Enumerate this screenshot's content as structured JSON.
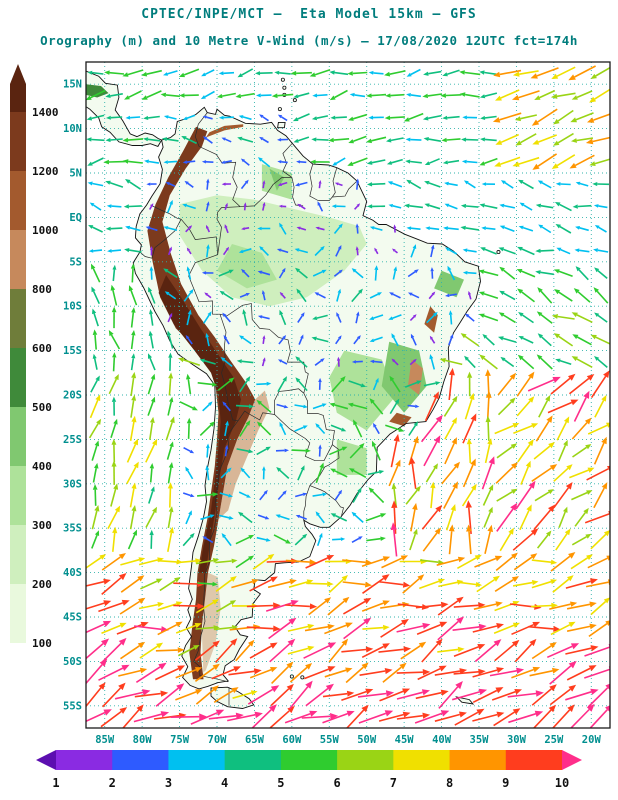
{
  "header": {
    "title_line1": "CPTEC/INPE/MCT —  Eta Model 15km — GFS",
    "title_line2": "Orography (m) and 10 Metre V-Wind (m/s) — 17/08/2020 12UTC fct=174h"
  },
  "map": {
    "lat_labels": [
      "15N",
      "10N",
      "5N",
      "EQ",
      "5S",
      "10S",
      "15S",
      "20S",
      "25S",
      "30S",
      "35S",
      "40S",
      "45S",
      "50S",
      "55S"
    ],
    "lon_labels": [
      "85W",
      "80W",
      "75W",
      "70W",
      "65W",
      "60W",
      "55W",
      "50W",
      "45W",
      "40W",
      "35W",
      "30W",
      "25W",
      "20W"
    ],
    "grid_color": "#2fb3ab",
    "label_color": "#008f8f",
    "frame_color": "#1b1b1b",
    "coast_color": "#111111",
    "border_color": "#2a2a2a",
    "land_color": "#f3fbef",
    "ocean_color": "#ffffff"
  },
  "elevation_scale": {
    "unit": "m",
    "labels": [
      "1400",
      "1200",
      "1000",
      "800",
      "600",
      "500",
      "400",
      "300",
      "200",
      "100"
    ],
    "colors_top_to_bottom": [
      "#5a2410",
      "#7c3a1d",
      "#a35a2e",
      "#c6895c",
      "#6f7d3a",
      "#3f8a3a",
      "#80c870",
      "#aee29a",
      "#cfefbe",
      "#e9f9dd",
      "#ffffff"
    ]
  },
  "wind_scale": {
    "unit": "m/s",
    "labels": [
      "1",
      "2",
      "3",
      "4",
      "5",
      "6",
      "7",
      "8",
      "9",
      "10"
    ],
    "colors_left_to_right": [
      "#5c0fb0",
      "#8a2be2",
      "#2e5bff",
      "#00c0f0",
      "#0fbf7f",
      "#2fcc2f",
      "#9ad415",
      "#f0e000",
      "#ff9500",
      "#ff3d1e",
      "#ff2e8a"
    ]
  }
}
